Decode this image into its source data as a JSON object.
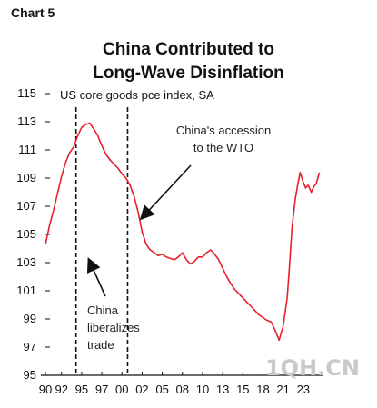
{
  "page": {
    "chart_label": "Chart 5",
    "title_line1": "China Contributed to",
    "title_line2": "Long-Wave Disinflation",
    "watermark": "1QH.CN"
  },
  "chart_data": {
    "type": "line",
    "title": "China Contributed to Long-Wave Disinflation",
    "ylabel": "US core goods pce index, SA",
    "ylim": [
      95,
      115
    ],
    "xlim": [
      1990,
      2024.5
    ],
    "yticks": [
      95,
      97,
      99,
      101,
      103,
      105,
      107,
      109,
      111,
      113,
      115
    ],
    "xticks": [
      {
        "x": 1990,
        "label": "90"
      },
      {
        "x": 1992,
        "label": "92"
      },
      {
        "x": 1994.5,
        "label": "95"
      },
      {
        "x": 1997,
        "label": "97"
      },
      {
        "x": 1999.5,
        "label": "00"
      },
      {
        "x": 2002,
        "label": "02"
      },
      {
        "x": 2004.5,
        "label": "05"
      },
      {
        "x": 2007,
        "label": "08"
      },
      {
        "x": 2009.5,
        "label": "10"
      },
      {
        "x": 2012,
        "label": "13"
      },
      {
        "x": 2014.5,
        "label": "15"
      },
      {
        "x": 2017,
        "label": "18"
      },
      {
        "x": 2019.5,
        "label": "21"
      },
      {
        "x": 2022,
        "label": "23"
      }
    ],
    "vlines": [
      1993.8,
      2000.2
    ],
    "series": [
      {
        "color": "#e8202a",
        "x": [
          1990.0,
          1990.5,
          1991.0,
          1991.5,
          1992.0,
          1992.5,
          1993.0,
          1993.5,
          1994.0,
          1994.5,
          1995.0,
          1995.5,
          1996.0,
          1996.5,
          1997.0,
          1997.5,
          1998.0,
          1998.5,
          1999.0,
          1999.5,
          2000.0,
          2000.5,
          2001.0,
          2001.5,
          2002.0,
          2002.5,
          2003.0,
          2003.5,
          2004.0,
          2004.5,
          2005.0,
          2005.5,
          2006.0,
          2006.5,
          2007.0,
          2007.5,
          2008.0,
          2008.5,
          2009.0,
          2009.5,
          2010.0,
          2010.5,
          2011.0,
          2011.5,
          2012.0,
          2012.5,
          2013.0,
          2013.5,
          2014.0,
          2014.5,
          2015.0,
          2015.5,
          2016.0,
          2016.5,
          2017.0,
          2017.5,
          2018.0,
          2018.5,
          2019.0,
          2019.5,
          2020.0,
          2020.3,
          2020.6,
          2021.0,
          2021.3,
          2021.6,
          2022.0,
          2022.3,
          2022.6,
          2023.0,
          2023.3,
          2023.6,
          2024.0
        ],
        "y": [
          104.3,
          105.6,
          106.7,
          107.9,
          109.1,
          110.1,
          110.8,
          111.2,
          112.0,
          112.6,
          112.8,
          112.9,
          112.5,
          112.0,
          111.3,
          110.7,
          110.3,
          110.0,
          109.7,
          109.3,
          109.0,
          108.5,
          107.7,
          106.6,
          105.2,
          104.3,
          103.9,
          103.7,
          103.5,
          103.6,
          103.4,
          103.3,
          103.2,
          103.4,
          103.7,
          103.2,
          102.9,
          103.1,
          103.4,
          103.4,
          103.7,
          103.9,
          103.6,
          103.2,
          102.6,
          102.0,
          101.5,
          101.1,
          100.8,
          100.5,
          100.2,
          99.9,
          99.6,
          99.3,
          99.1,
          98.9,
          98.8,
          98.2,
          97.5,
          98.5,
          100.5,
          102.8,
          105.5,
          107.5,
          108.5,
          109.4,
          108.7,
          108.3,
          108.5,
          108.0,
          108.4,
          108.6,
          109.4
        ]
      }
    ],
    "annotations": [
      {
        "lines": [
          "China's accession",
          "to the WTO"
        ]
      },
      {
        "lines": [
          "China",
          "liberalizes",
          "trade"
        ]
      }
    ]
  }
}
